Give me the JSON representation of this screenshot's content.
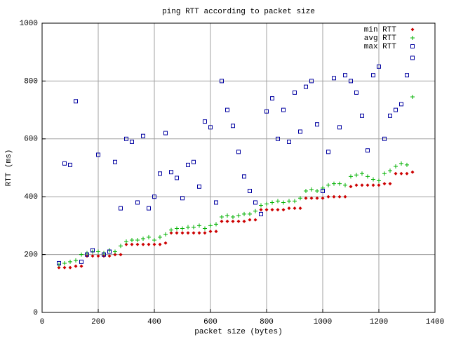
{
  "chart_data": {
    "type": "scatter",
    "title": "ping RTT according to packet size",
    "x_label": "packet size (bytes)",
    "y_label": "RTT (ms)",
    "xlim": [
      0,
      1400
    ],
    "ylim": [
      0,
      1000
    ],
    "xticks": [
      0,
      200,
      400,
      600,
      800,
      1000,
      1200,
      1400
    ],
    "yticks": [
      0,
      200,
      400,
      600,
      800,
      1000
    ],
    "grid": true,
    "legend": "top-right",
    "x": [
      60,
      80,
      100,
      120,
      140,
      160,
      180,
      200,
      220,
      240,
      260,
      280,
      300,
      320,
      340,
      360,
      380,
      400,
      420,
      440,
      460,
      480,
      500,
      520,
      540,
      560,
      580,
      600,
      620,
      640,
      660,
      680,
      700,
      720,
      740,
      760,
      780,
      800,
      820,
      840,
      860,
      880,
      900,
      920,
      940,
      960,
      980,
      1000,
      1020,
      1040,
      1060,
      1080,
      1100,
      1120,
      1140,
      1160,
      1180,
      1200,
      1220,
      1240,
      1260,
      1280,
      1300,
      1320
    ],
    "series": [
      {
        "name": "min RTT",
        "color": "#cc0000",
        "marker": "diamond",
        "values": [
          155,
          155,
          155,
          160,
          160,
          195,
          195,
          195,
          195,
          195,
          200,
          200,
          235,
          235,
          235,
          235,
          235,
          235,
          235,
          240,
          275,
          275,
          275,
          275,
          275,
          275,
          275,
          280,
          280,
          315,
          315,
          315,
          315,
          315,
          320,
          320,
          355,
          355,
          355,
          355,
          355,
          360,
          360,
          360,
          395,
          395,
          395,
          395,
          400,
          400,
          400,
          400,
          435,
          440,
          440,
          440,
          440,
          440,
          445,
          445,
          480,
          480,
          480,
          485
        ]
      },
      {
        "name": "avg RTT",
        "color": "#00b000",
        "marker": "plus",
        "values": [
          165,
          170,
          175,
          180,
          200,
          205,
          210,
          210,
          205,
          215,
          210,
          230,
          245,
          250,
          250,
          255,
          260,
          250,
          260,
          270,
          285,
          290,
          290,
          295,
          295,
          300,
          290,
          300,
          305,
          330,
          335,
          330,
          335,
          340,
          340,
          350,
          370,
          375,
          380,
          385,
          380,
          385,
          385,
          395,
          420,
          425,
          420,
          430,
          440,
          445,
          445,
          440,
          470,
          475,
          480,
          470,
          460,
          455,
          480,
          490,
          505,
          515,
          510,
          745
        ]
      },
      {
        "name": "max RTT",
        "color": "#0000a0",
        "marker": "square",
        "values": [
          170,
          515,
          510,
          730,
          175,
          200,
          215,
          545,
          200,
          210,
          520,
          360,
          600,
          590,
          380,
          610,
          360,
          400,
          480,
          620,
          485,
          465,
          395,
          510,
          520,
          435,
          660,
          640,
          380,
          800,
          700,
          645,
          555,
          470,
          420,
          380,
          340,
          695,
          740,
          600,
          700,
          590,
          760,
          625,
          780,
          800,
          650,
          420,
          555,
          810,
          640,
          820,
          800,
          760,
          680,
          560,
          820,
          850,
          600,
          680,
          700,
          720,
          820,
          880
        ]
      }
    ]
  }
}
